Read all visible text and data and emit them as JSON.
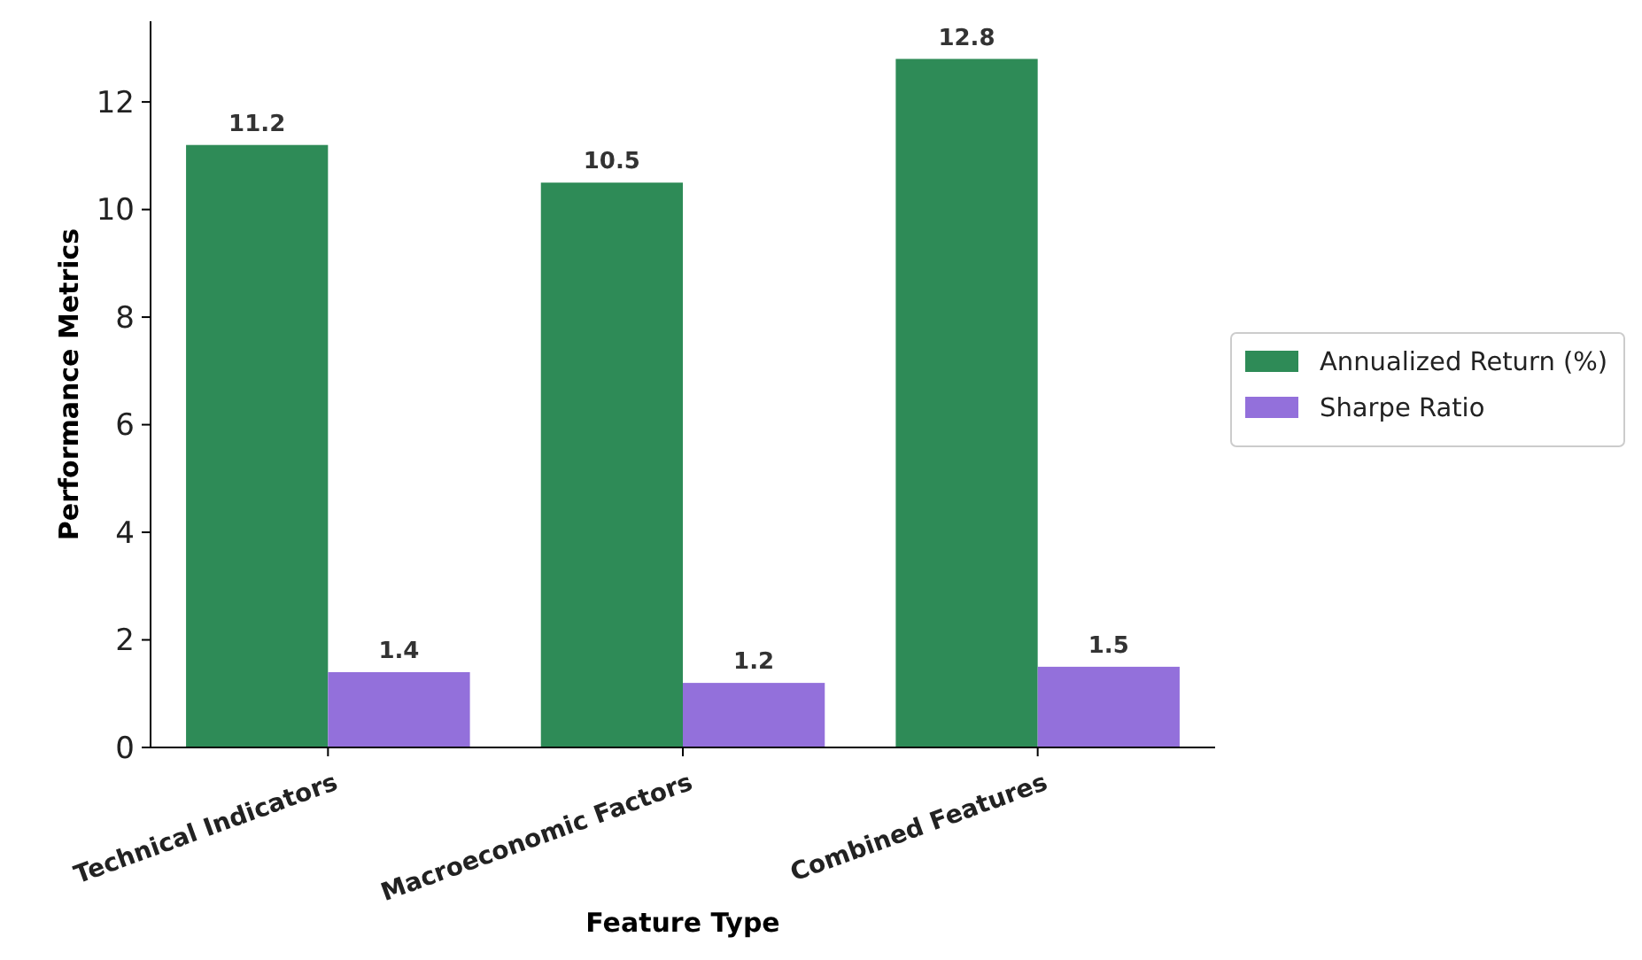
{
  "chart_data": {
    "type": "bar",
    "xlabel": "Feature Type",
    "ylabel": "Performance Metrics",
    "categories": [
      "Technical Indicators",
      "Macroeconomic Factors",
      "Combined Features"
    ],
    "series": [
      {
        "name": "Annualized Return (%)",
        "color": "#2e8b57",
        "values": [
          11.2,
          10.5,
          12.8
        ]
      },
      {
        "name": "Sharpe Ratio",
        "color": "#9370db",
        "values": [
          1.4,
          1.2,
          1.5
        ]
      }
    ],
    "ylim": [
      0,
      13.5
    ],
    "yticks": [
      0,
      2,
      4,
      6,
      8,
      10,
      12
    ],
    "data_labels": true,
    "legend": "right",
    "grid": false
  }
}
